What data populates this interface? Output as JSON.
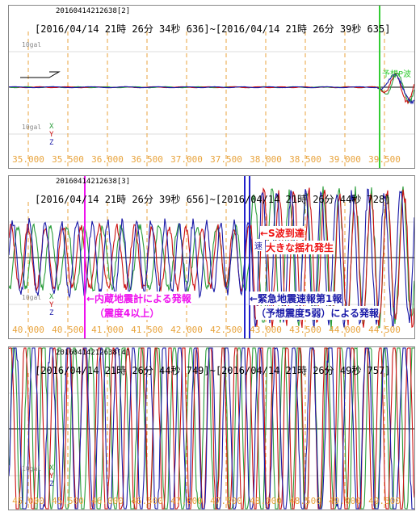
{
  "chart_data": [
    {
      "type": "line",
      "id": "20160414212638[2]",
      "range_text": "[2016/04/14 21時 26分 34秒 636]~[2016/04/14 21時 26分 39秒 635]",
      "scale_top": "10gal",
      "scale_bottom": "10gal",
      "series": [
        {
          "name": "X"
        },
        {
          "name": "Y"
        },
        {
          "name": "Z"
        }
      ],
      "x_ticks": [
        "35.000",
        "35.500",
        "36.000",
        "36.500",
        "37.000",
        "37.500",
        "38.000",
        "38.500",
        "39.000",
        "39.500"
      ],
      "markers": [
        {
          "label": "予想P波"
        }
      ]
    },
    {
      "type": "line",
      "id": "20160414212638[3]",
      "range_text": "[2016/04/14 21時 26分 39秒 656]~[2016/04/14 21時 26分 44秒 728]",
      "scale_bottom": "10gal",
      "series": [
        {
          "name": "X"
        },
        {
          "name": "Y"
        },
        {
          "name": "Z"
        }
      ],
      "x_ticks": [
        "40.000",
        "40.500",
        "41.000",
        "41.500",
        "42.000",
        "42.500",
        "43.000",
        "43.500",
        "44.000",
        "44.500"
      ],
      "markers": [
        {
          "label": "速"
        }
      ]
    },
    {
      "type": "line",
      "id": "20160414212638[4]",
      "range_text": "[2016/04/14 21時 26分 44秒 749]~[2016/04/14 21時 26分 49秒 757]",
      "scale_bottom": "10gal",
      "series": [
        {
          "name": "X"
        },
        {
          "name": "Y"
        },
        {
          "name": "Z"
        }
      ],
      "x_ticks": [
        "45.000",
        "45.500",
        "46.000",
        "46.500",
        "47.000",
        "47.500",
        "48.000",
        "48.500",
        "49.000",
        "49.500"
      ]
    }
  ],
  "annotations": {
    "s_wave_line1": "←S波到達",
    "s_wave_line2": "大きな揺れ発生",
    "internal_line1": "←内蔵地震計による発報",
    "internal_line2": "（震度4以上）",
    "eew_line1": "←緊急地震速報第1報",
    "eew_line2": "（予想震度5弱）による発報"
  },
  "colors": {
    "x_series": "#2a9d3a",
    "y_series": "#cc1111",
    "z_series": "#1a1aa8",
    "tick_grid": "#e8a33c",
    "tick_label": "#e8a33c",
    "p_wave_marker": "#33cc33",
    "internal_marker": "#ee11ee",
    "eew_marker": "#2222cc",
    "annotation_red": "#ee1111",
    "annotation_magenta": "#ee11ee",
    "annotation_blue": "#1a1aa8"
  }
}
